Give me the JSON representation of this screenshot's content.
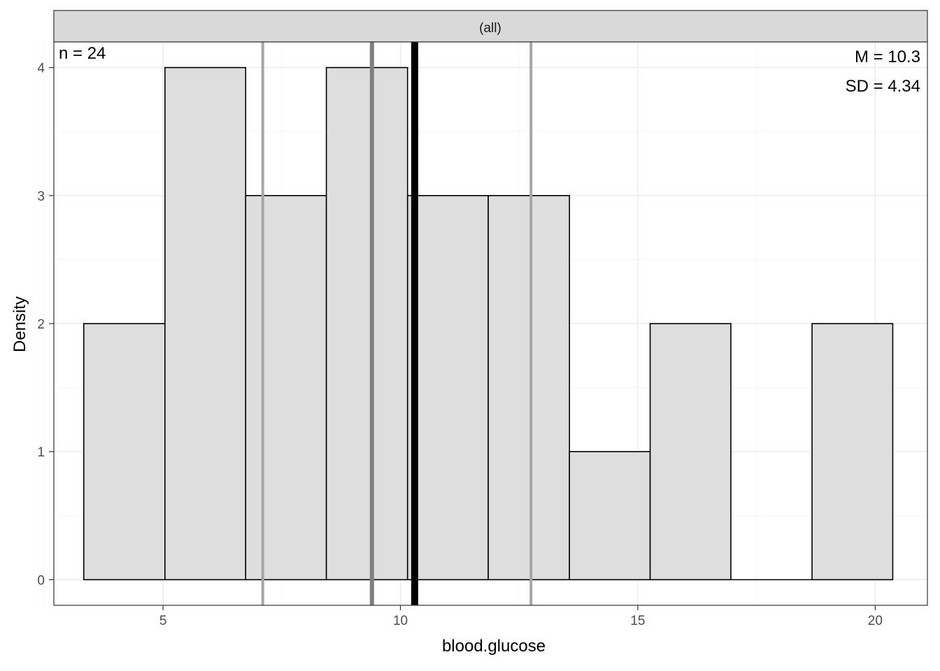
{
  "chart_data": {
    "type": "bar",
    "facet_label": "(all)",
    "xlabel": "blood.glucose",
    "ylabel": "Density",
    "xlim": [
      2.7,
      21.1
    ],
    "ylim": [
      -0.2,
      4.2
    ],
    "x_ticks": [
      5,
      10,
      15,
      20
    ],
    "x_minor_ticks": [
      2.5,
      7.5,
      12.5,
      17.5
    ],
    "y_ticks": [
      0,
      1,
      2,
      3,
      4
    ],
    "y_minor_ticks": [
      0.5,
      1.5,
      2.5,
      3.5
    ],
    "bins": [
      {
        "x0": 3.33,
        "x1": 5.04,
        "value": 2
      },
      {
        "x0": 5.04,
        "x1": 6.74,
        "value": 4
      },
      {
        "x0": 6.74,
        "x1": 8.44,
        "value": 3
      },
      {
        "x0": 8.44,
        "x1": 10.15,
        "value": 4
      },
      {
        "x0": 10.15,
        "x1": 11.85,
        "value": 3
      },
      {
        "x0": 11.85,
        "x1": 13.56,
        "value": 3
      },
      {
        "x0": 13.56,
        "x1": 15.26,
        "value": 1
      },
      {
        "x0": 15.26,
        "x1": 16.96,
        "value": 2
      },
      {
        "x0": 16.96,
        "x1": 18.67,
        "value": 0
      },
      {
        "x0": 18.67,
        "x1": 20.37,
        "value": 2
      }
    ],
    "vlines": [
      {
        "x": 10.3,
        "kind": "mean",
        "color": "#000000"
      },
      {
        "x": 9.4,
        "kind": "median",
        "color": "#7f7f7f"
      },
      {
        "x": 7.1,
        "kind": "quartile",
        "color": "#a6a6a6"
      },
      {
        "x": 12.75,
        "kind": "quartile",
        "color": "#a6a6a6"
      }
    ],
    "annotations": {
      "n": "n = 24",
      "mean": "M = 10.3",
      "sd": "SD = 4.34"
    },
    "grid": true,
    "legend": "none",
    "colors": {
      "bar_fill": "#dedede",
      "bar_stroke": "#000000",
      "strip_fill": "#d9d9d9",
      "grid_major": "#ebebeb",
      "grid_minor": "#f5f5f5"
    }
  }
}
